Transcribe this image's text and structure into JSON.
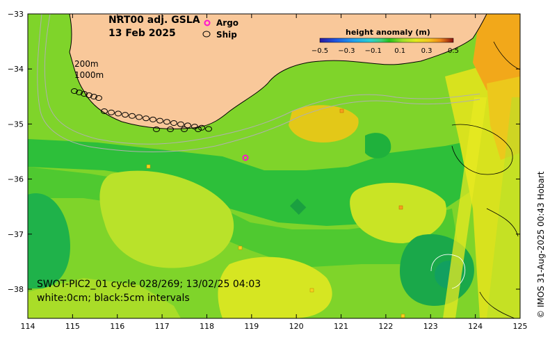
{
  "title": {
    "line1": "NRT00 adj. GSLA",
    "line2": "13 Feb 2025"
  },
  "legend": {
    "argo": "Argo",
    "ship": "Ship"
  },
  "colorbar": {
    "title": "height anomaly (m)",
    "ticks": [
      "−0.5",
      "−0.3",
      "−0.1",
      "0.1",
      "0.3",
      "0.5"
    ],
    "colors": [
      "#2a1aa0",
      "#1f55e0",
      "#1e9ef0",
      "#2ad2d0",
      "#3ecf7a",
      "#27c21c",
      "#9fe02a",
      "#e2ea1e",
      "#f5c61e",
      "#f08a1a",
      "#d0401a",
      "#8a1010"
    ]
  },
  "isobaths": {
    "shallow": "200m",
    "deep": "1000m"
  },
  "axes": {
    "x_ticks": [
      "114",
      "115",
      "116",
      "117",
      "118",
      "119",
      "120",
      "121",
      "122",
      "123",
      "124",
      "125"
    ],
    "y_ticks": [
      "−33",
      "−34",
      "−35",
      "−36",
      "−37",
      "−38"
    ]
  },
  "caption": {
    "line1": "SWOT-PIC2_01 cycle 028/269; 13/02/25 04:03",
    "line2": "white:0cm; black:5cm intervals"
  },
  "credit": "© IMOS 31-Aug-2025 00:43 Hobart",
  "colors": {
    "land": "#f9c89a",
    "ocean_base": "#9fd82a",
    "ship": "#000000",
    "argo": "#ff10d0"
  }
}
